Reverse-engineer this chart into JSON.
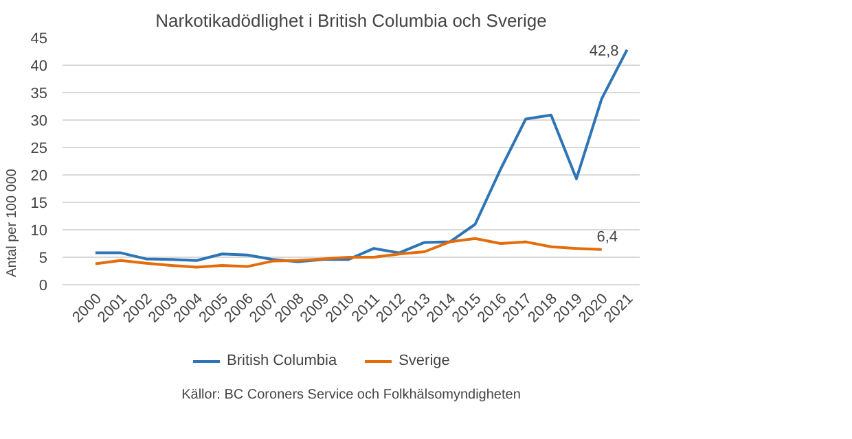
{
  "chart_data": {
    "type": "line",
    "title": "Narkotikadödlighet i British Columbia och Sverige",
    "ylabel": "Antal per 100 000",
    "categories": [
      "2000",
      "2001",
      "2002",
      "2003",
      "2004",
      "2005",
      "2006",
      "2007",
      "2008",
      "2009",
      "2010",
      "2011",
      "2012",
      "2013",
      "2014",
      "2015",
      "2016",
      "2017",
      "2018",
      "2019",
      "2020",
      "2021"
    ],
    "series": [
      {
        "name": "British Columbia",
        "color": "#2e75b6",
        "values": [
          5.8,
          5.8,
          4.7,
          4.6,
          4.4,
          5.6,
          5.4,
          4.6,
          4.2,
          4.6,
          4.6,
          6.6,
          5.8,
          7.7,
          7.8,
          11.0,
          21.0,
          30.2,
          30.9,
          19.3,
          33.9,
          42.8
        ],
        "value_labels": [
          null,
          null,
          null,
          null,
          null,
          null,
          null,
          null,
          null,
          null,
          null,
          null,
          null,
          null,
          null,
          null,
          null,
          null,
          null,
          null,
          null,
          "42,8"
        ]
      },
      {
        "name": "Sverige",
        "color": "#e46c0a",
        "values": [
          3.8,
          4.4,
          3.9,
          3.5,
          3.2,
          3.5,
          3.3,
          4.3,
          4.4,
          4.7,
          5.0,
          5.0,
          5.6,
          6.0,
          7.8,
          8.4,
          7.5,
          7.8,
          6.9,
          6.6,
          6.4,
          null
        ],
        "value_labels": [
          null,
          null,
          null,
          null,
          null,
          null,
          null,
          null,
          null,
          null,
          null,
          null,
          null,
          null,
          null,
          null,
          null,
          null,
          null,
          null,
          "6,4",
          null
        ]
      }
    ],
    "ylim": [
      0,
      45
    ],
    "yticks": [
      0,
      5,
      10,
      15,
      20,
      25,
      30,
      35,
      40,
      45
    ],
    "grid": "y",
    "legend": "bottom",
    "marker": "none",
    "line_style": "solid",
    "annotations": [
      "Källor: BC Coroners Service och Folkhälsomyndigheten"
    ]
  }
}
